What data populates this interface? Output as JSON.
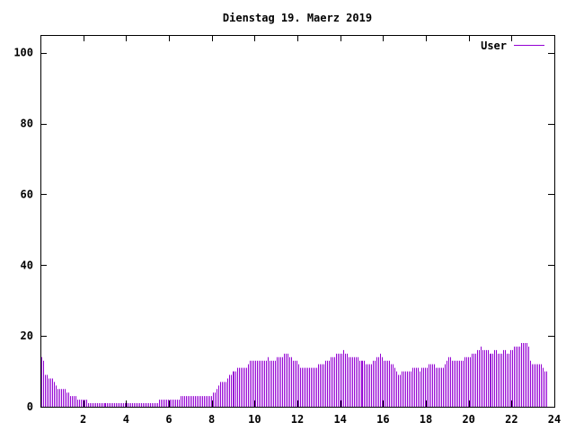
{
  "chart_data": {
    "type": "bar",
    "title": "Dienstag 19. Maerz 2019",
    "xlabel": "",
    "ylabel": "",
    "xlim": [
      0,
      24
    ],
    "ylim": [
      0,
      105
    ],
    "xticks": [
      2,
      4,
      6,
      8,
      10,
      12,
      14,
      16,
      18,
      20,
      22,
      24
    ],
    "xtick_labels": [
      "2",
      "4",
      "6",
      "8",
      "10",
      "12",
      "14",
      "16",
      "18",
      "20",
      "22",
      "24"
    ],
    "yticks": [
      0,
      20,
      40,
      60,
      80,
      100
    ],
    "ytick_labels": [
      "0",
      "20",
      "40",
      "60",
      "80",
      "100"
    ],
    "grid": false,
    "legend_position": "top-right",
    "interval_minutes": 5,
    "series": [
      {
        "name": "User",
        "color": "#9400d3",
        "values": [
          14,
          13,
          9,
          9,
          8,
          8,
          8,
          7,
          6,
          5,
          5,
          5,
          5,
          5,
          4,
          4,
          3,
          3,
          3,
          3,
          2,
          2,
          2,
          2,
          2,
          2,
          1,
          1,
          1,
          1,
          1,
          1,
          1,
          1,
          1,
          1,
          1,
          1,
          1,
          1,
          1,
          1,
          1,
          1,
          1,
          1,
          1,
          1,
          1,
          1,
          1,
          1,
          1,
          1,
          1,
          1,
          1,
          1,
          1,
          1,
          1,
          1,
          1,
          1,
          1,
          1,
          2,
          2,
          2,
          2,
          2,
          2,
          2,
          2,
          2,
          2,
          2,
          2,
          3,
          3,
          3,
          3,
          3,
          3,
          3,
          3,
          3,
          3,
          3,
          3,
          3,
          3,
          3,
          3,
          3,
          3,
          4,
          4,
          5,
          6,
          7,
          7,
          7,
          7,
          8,
          9,
          9,
          10,
          10,
          10,
          11,
          11,
          11,
          11,
          11,
          11,
          12,
          13,
          13,
          13,
          13,
          13,
          13,
          13,
          13,
          13,
          13,
          14,
          13,
          13,
          13,
          13,
          14,
          14,
          14,
          14,
          15,
          15,
          15,
          14,
          14,
          13,
          13,
          13,
          12,
          11,
          11,
          11,
          11,
          11,
          11,
          11,
          11,
          11,
          11,
          12,
          12,
          12,
          12,
          13,
          13,
          13,
          14,
          14,
          14,
          15,
          15,
          15,
          15,
          16,
          15,
          15,
          14,
          14,
          14,
          14,
          14,
          14,
          13,
          13,
          13,
          13,
          12,
          12,
          12,
          12,
          13,
          13,
          14,
          14,
          15,
          14,
          13,
          13,
          13,
          13,
          12,
          12,
          11,
          10,
          9,
          9,
          10,
          10,
          10,
          10,
          10,
          10,
          11,
          11,
          11,
          11,
          10,
          11,
          11,
          11,
          11,
          12,
          12,
          12,
          12,
          11,
          11,
          11,
          11,
          11,
          12,
          13,
          14,
          14,
          13,
          13,
          13,
          13,
          13,
          13,
          13,
          14,
          14,
          14,
          14,
          15,
          15,
          15,
          16,
          16,
          17,
          16,
          16,
          16,
          16,
          15,
          15,
          15,
          16,
          16,
          15,
          15,
          15,
          16,
          16,
          15,
          15,
          16,
          16,
          17,
          17,
          17,
          17,
          18,
          18,
          18,
          18,
          17,
          13,
          12,
          12,
          12,
          12,
          12,
          12,
          11,
          10,
          10
        ]
      }
    ]
  }
}
